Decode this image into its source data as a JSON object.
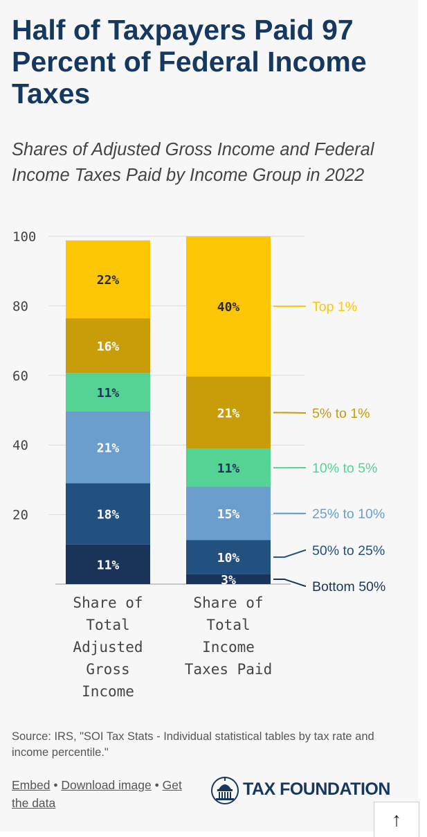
{
  "title": "Half of Taxpayers Paid 97 Percent of Federal Income Taxes",
  "subtitle": "Shares of Adjusted Gross Income and Federal Income Taxes Paid by Income Group in 2022",
  "source": "Source: IRS, \"SOI Tax Stats - Individual statistical tables by tax rate and income percentile.\"",
  "links": {
    "embed": "Embed",
    "download": "Download image",
    "get_data_1": "Get",
    "get_data_2": "the data",
    "separator": "•"
  },
  "logo": {
    "text": "TAX FOUNDATION",
    "icon": "capitol-dome-icon"
  },
  "scroll_top_icon": "↑",
  "colors": {
    "bottom50": "#1a3459",
    "p50to25": "#22507f",
    "p25to10": "#6c9ecd",
    "p10to5": "#55d394",
    "p5to1": "#c99c0a",
    "top1": "#fdc705",
    "title": "#16375e"
  },
  "chart_data": {
    "type": "bar",
    "stacked": true,
    "title": "Half of Taxpayers Paid 97 Percent of Federal Income Taxes",
    "ylim": [
      0,
      100
    ],
    "yticks": [
      20,
      40,
      60,
      80,
      100
    ],
    "grid": true,
    "categories": [
      [
        "Share of",
        "Total",
        "Adjusted",
        "Gross",
        "Income"
      ],
      [
        "Share of",
        "Total",
        "Income",
        "Taxes Paid"
      ]
    ],
    "series": [
      {
        "name": "Bottom 50%",
        "color": "#1a3459",
        "label_color": "#ffffff",
        "values": [
          11.4,
          2.8
        ],
        "labels": [
          "11%",
          "3%"
        ]
      },
      {
        "name": "50% to 25%",
        "color": "#22507f",
        "label_color": "#ffffff",
        "values": [
          17.6,
          9.9
        ],
        "labels": [
          "18%",
          "10%"
        ]
      },
      {
        "name": "25% to 10%",
        "color": "#6c9ecd",
        "label_color": "#ffffff",
        "values": [
          20.6,
          15.3
        ],
        "labels": [
          "21%",
          "15%"
        ]
      },
      {
        "name": "10% to 5%",
        "color": "#55d394",
        "label_color": "#1a3459",
        "values": [
          11.1,
          10.9
        ],
        "labels": [
          "11%",
          "11%"
        ]
      },
      {
        "name": "5% to 1%",
        "color": "#c99c0a",
        "label_color": "#ffffff",
        "values": [
          15.7,
          20.8
        ],
        "labels": [
          "16%",
          "21%"
        ]
      },
      {
        "name": "Top 1%",
        "color": "#fdc705",
        "label_color": "#2b2b2b",
        "values": [
          22.4,
          40.3
        ],
        "labels": [
          "22%",
          "40%"
        ]
      }
    ]
  }
}
